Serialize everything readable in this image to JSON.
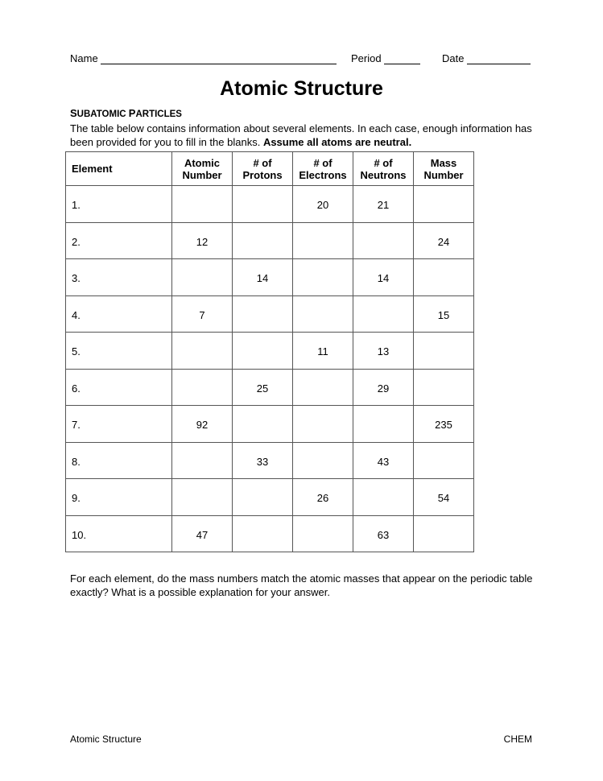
{
  "header": {
    "name_label": "Name",
    "period_label": "Period",
    "date_label": "Date"
  },
  "title": "Atomic Structure",
  "section": {
    "first": "S",
    "rest": "UBATOMIC ",
    "first2": "P",
    "rest2": "ARTICLES"
  },
  "intro": "The table below contains information about several elements.  In each case, enough information has been provided for you to fill in the blanks.  ",
  "intro_bold": "Assume all atoms are neutral.",
  "table": {
    "headers": [
      [
        "Element",
        ""
      ],
      [
        "Atomic",
        "Number"
      ],
      [
        "#  of",
        "Protons"
      ],
      [
        "# of",
        "Electrons"
      ],
      [
        "# of",
        "Neutrons"
      ],
      [
        "Mass",
        "Number"
      ]
    ],
    "rows": [
      [
        "1.",
        "",
        "",
        "20",
        "21",
        ""
      ],
      [
        "2.",
        "12",
        "",
        "",
        "",
        "24"
      ],
      [
        "3.",
        "",
        "14",
        "",
        "14",
        ""
      ],
      [
        "4.",
        "7",
        "",
        "",
        "",
        "15"
      ],
      [
        "5.",
        "",
        "",
        "11",
        "13",
        ""
      ],
      [
        "6.",
        "",
        "25",
        "",
        "29",
        ""
      ],
      [
        "7.",
        "92",
        "",
        "",
        "",
        "235"
      ],
      [
        "8.",
        "",
        "33",
        "",
        "43",
        ""
      ],
      [
        "9.",
        "",
        "",
        "26",
        "",
        "54"
      ],
      [
        "10.",
        "47",
        "",
        "",
        "63",
        ""
      ]
    ]
  },
  "question": "For each element, do the mass numbers match the atomic masses that appear on the periodic table exactly?  What is a possible explanation for your answer.",
  "footer": {
    "left": "Atomic Structure",
    "right": "CHEM"
  }
}
